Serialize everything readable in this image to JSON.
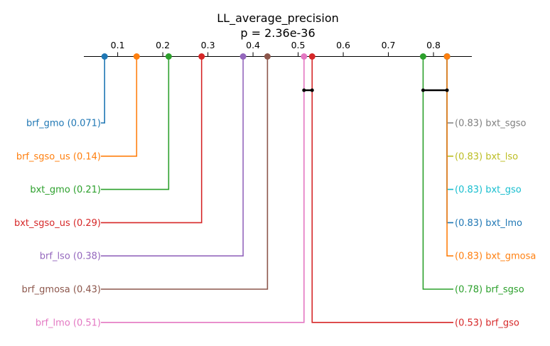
{
  "chart_data": {
    "type": "critical-difference",
    "title": "LL_average_precision",
    "subtitle": "p = 2.36e-36",
    "xlim": [
      0.025,
      0.885
    ],
    "ticks": [
      0.1,
      0.2,
      0.3,
      0.4,
      0.5,
      0.6,
      0.7,
      0.8
    ],
    "tick_labels": [
      "0.1",
      "0.2",
      "0.3",
      "0.4",
      "0.5",
      "0.6",
      "0.7",
      "0.8"
    ],
    "left_methods": [
      {
        "name": "brf_gmo",
        "value": 0.071,
        "label": "brf_gmo (0.071)",
        "color": "#1f77b4"
      },
      {
        "name": "brf_sgso_us",
        "value": 0.142,
        "label": "brf_sgso_us (0.14)",
        "color": "#ff7f0e"
      },
      {
        "name": "bxt_gmo",
        "value": 0.213,
        "label": "bxt_gmo (0.21)",
        "color": "#2ca02c"
      },
      {
        "name": "bxt_sgso_us",
        "value": 0.286,
        "label": "bxt_sgso_us (0.29)",
        "color": "#d62728"
      },
      {
        "name": "brf_lso",
        "value": 0.378,
        "label": "brf_lso (0.38)",
        "color": "#9467bd"
      },
      {
        "name": "brf_gmosa",
        "value": 0.432,
        "label": "brf_gmosa (0.43)",
        "color": "#8c564b"
      },
      {
        "name": "brf_lmo",
        "value": 0.513,
        "label": "brf_lmo (0.51)",
        "color": "#e377c2"
      }
    ],
    "right_methods": [
      {
        "name": "bxt_sgso",
        "value": 0.83,
        "label": "(0.83) bxt_sgso",
        "color": "#7f7f7f"
      },
      {
        "name": "bxt_lso",
        "value": 0.83,
        "label": "(0.83) bxt_lso",
        "color": "#bcbd22"
      },
      {
        "name": "bxt_gso",
        "value": 0.83,
        "label": "(0.83) bxt_gso",
        "color": "#17becf"
      },
      {
        "name": "bxt_lmo",
        "value": 0.83,
        "label": "(0.83) bxt_lmo",
        "color": "#1f77b4"
      },
      {
        "name": "bxt_gmosa",
        "value": 0.83,
        "label": "(0.83) bxt_gmosa",
        "color": "#ff7f0e"
      },
      {
        "name": "brf_sgso",
        "value": 0.777,
        "label": "(0.78) brf_sgso",
        "color": "#2ca02c"
      },
      {
        "name": "brf_gso",
        "value": 0.531,
        "label": "(0.53) brf_gso",
        "color": "#d62728"
      }
    ],
    "cliques": [
      [
        0.513,
        0.531
      ],
      [
        0.777,
        0.83
      ]
    ]
  }
}
